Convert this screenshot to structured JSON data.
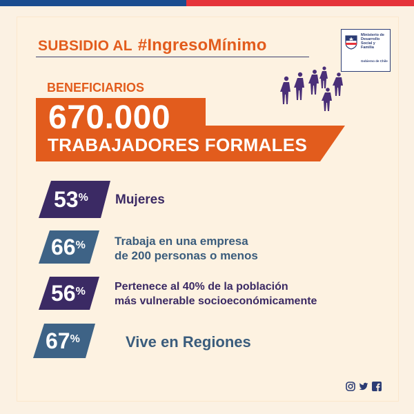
{
  "header": {
    "prefix": "SUBSIDIO AL",
    "hashtag": "#IngresoMínimo"
  },
  "logo": {
    "ministry": [
      "Ministerio de",
      "Desarrollo",
      "Social y",
      "Familia"
    ],
    "government": "Gobierno de Chile"
  },
  "beneficiaries": {
    "label": "BENEFICIARIOS",
    "count": "670.000",
    "description": "TRABAJADORES FORMALES"
  },
  "stats": [
    {
      "value": "53",
      "unit": "%",
      "text": [
        "Mujeres"
      ]
    },
    {
      "value": "66",
      "unit": "%",
      "text": [
        "Trabaja en una empresa",
        "de 200 personas o menos"
      ]
    },
    {
      "value": "56",
      "unit": "%",
      "text": [
        "Pertenece al 40% de la población",
        "más vulnerable socioeconómicamente"
      ]
    },
    {
      "value": "67",
      "unit": "%",
      "text": [
        "Vive en Regiones"
      ]
    }
  ],
  "colors": {
    "orange": "#e25c1d",
    "purple": "#3b2a64",
    "slate": "#3e6386",
    "background": "#fdf2e1",
    "top_blue": "#1a4c8f",
    "top_red": "#e5333a"
  },
  "social_icons": [
    "instagram-icon",
    "twitter-icon",
    "facebook-icon"
  ]
}
